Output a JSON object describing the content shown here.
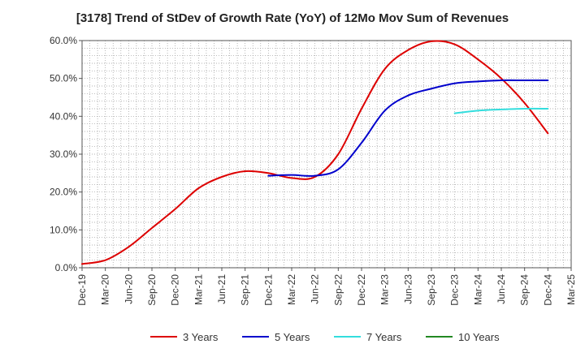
{
  "chart_data": {
    "type": "line",
    "title": "[3178]  Trend of StDev of Growth Rate (YoY) of 12Mo Mov Sum of Revenues",
    "xlabel": "",
    "ylabel": "",
    "ylim": [
      0,
      60
    ],
    "y_ticks": [
      0,
      10,
      20,
      30,
      40,
      50,
      60
    ],
    "y_tick_labels": [
      "0.0%",
      "10.0%",
      "20.0%",
      "30.0%",
      "40.0%",
      "50.0%",
      "60.0%"
    ],
    "categories": [
      "Dec-19",
      "Mar-20",
      "Jun-20",
      "Sep-20",
      "Dec-20",
      "Mar-21",
      "Jun-21",
      "Sep-21",
      "Dec-21",
      "Mar-22",
      "Jun-22",
      "Sep-22",
      "Dec-22",
      "Mar-23",
      "Jun-23",
      "Sep-23",
      "Dec-23",
      "Mar-24",
      "Jun-24",
      "Sep-24",
      "Dec-24",
      "Mar-25"
    ],
    "series": [
      {
        "name": "3 Years",
        "color": "#dd0000",
        "values": [
          1.0,
          2.0,
          5.5,
          10.5,
          15.5,
          21.0,
          24.0,
          25.5,
          25.0,
          23.7,
          24.0,
          30.0,
          42.0,
          52.5,
          57.5,
          59.8,
          59.0,
          55.0,
          50.0,
          43.5,
          35.5,
          null
        ]
      },
      {
        "name": "5 Years",
        "color": "#0000cc",
        "values": [
          null,
          null,
          null,
          null,
          null,
          null,
          null,
          null,
          24.3,
          24.5,
          24.3,
          26.0,
          33.0,
          41.5,
          45.5,
          47.3,
          48.7,
          49.2,
          49.5,
          49.5,
          49.5,
          null
        ]
      },
      {
        "name": "7 Years",
        "color": "#33dddd",
        "values": [
          null,
          null,
          null,
          null,
          null,
          null,
          null,
          null,
          null,
          null,
          null,
          null,
          null,
          null,
          null,
          null,
          40.8,
          41.5,
          41.8,
          42.0,
          42.0,
          null
        ]
      },
      {
        "name": "10 Years",
        "color": "#228822",
        "values": [
          null,
          null,
          null,
          null,
          null,
          null,
          null,
          null,
          null,
          null,
          null,
          null,
          null,
          null,
          null,
          null,
          null,
          null,
          null,
          null,
          null,
          null
        ]
      }
    ],
    "grid": true,
    "legend_position": "bottom"
  }
}
